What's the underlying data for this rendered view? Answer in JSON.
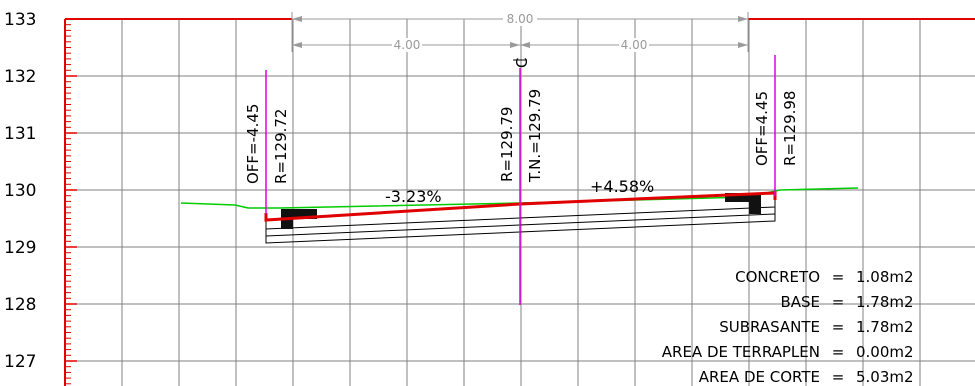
{
  "y_axis": {
    "ticks": [
      {
        "value": 133,
        "label": "133"
      },
      {
        "value": 132,
        "label": "132"
      },
      {
        "value": 131,
        "label": "131"
      },
      {
        "value": 130,
        "label": "130"
      },
      {
        "value": 129,
        "label": "129"
      },
      {
        "value": 128,
        "label": "128"
      },
      {
        "value": 127,
        "label": "127"
      }
    ]
  },
  "dimensions": {
    "total": "8.00",
    "left_half": "4.00",
    "right_half": "4.00"
  },
  "labels": {
    "left_offset": "OFF=-4.45",
    "left_elevation": "R=129.72",
    "center_elevation": "R=129.79",
    "center_terrain": "T.N.=129.79",
    "centerline_symbol": "C",
    "right_offset": "OFF=4.45",
    "right_elevation": "R=129.98",
    "left_slope": "-3.23%",
    "right_slope": "+4.58%"
  },
  "areas": [
    {
      "label": "CONCRETO",
      "eq": "=",
      "value": "1.08m2"
    },
    {
      "label": "BASE",
      "eq": "=",
      "value": "1.78m2"
    },
    {
      "label": "SUBRASANTE",
      "eq": "=",
      "value": "1.78m2"
    },
    {
      "label": "AREA DE TERRAPLEN",
      "eq": "=",
      "value": "0.00m2"
    },
    {
      "label": "AREA DE CORTE",
      "eq": "=",
      "value": "5.03m2"
    }
  ],
  "colors": {
    "grid": "#808080",
    "frame": "#e00000",
    "road": "#e00000",
    "ground": "#00cc00",
    "markers": "#e000e0",
    "dimension": "#9a9a9a",
    "layers": "#000000"
  }
}
